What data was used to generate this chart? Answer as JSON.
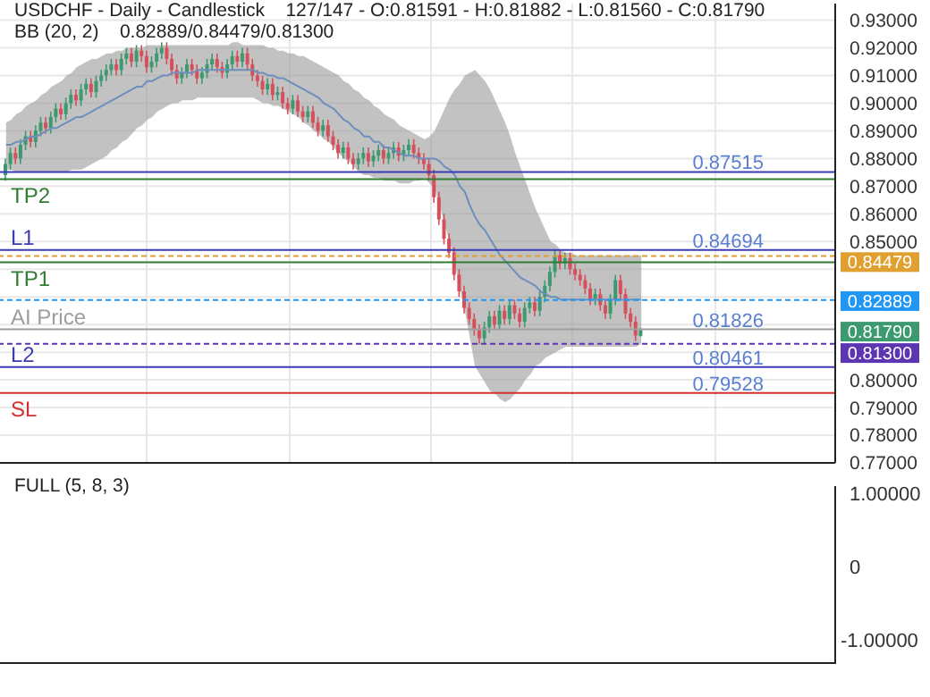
{
  "chart_data": [
    {
      "type": "candlestick",
      "title": "USDCHF - Daily - Candlestick    127/147 - O:0.81591 - H:0.81882 - L:0.81560 - C:0.81790",
      "subtitle": "BB (20, 2)    0.82889/0.84479/0.81300",
      "categories": [
        null,
        null,
        null,
        null,
        null,
        null,
        null,
        null,
        null,
        null,
        null,
        null,
        null,
        null,
        null,
        null,
        null,
        null,
        null,
        null,
        null,
        null,
        null,
        null,
        null,
        null,
        null,
        null,
        null,
        null,
        null,
        null,
        null,
        null,
        null,
        null,
        null,
        null,
        null,
        null,
        null,
        null,
        null,
        null,
        null,
        null,
        null,
        null,
        null,
        null,
        null,
        null,
        null,
        null,
        null,
        null,
        null,
        null,
        null,
        null,
        null,
        null,
        null,
        null,
        null,
        null,
        null,
        null,
        null,
        null,
        null,
        null,
        null,
        null,
        null,
        null,
        null,
        null,
        null,
        null,
        null,
        null,
        null,
        null,
        null,
        null,
        null,
        null,
        null,
        null,
        null,
        null,
        null,
        null,
        null,
        null,
        null,
        null,
        null,
        null,
        null,
        null,
        null,
        null,
        null,
        null,
        null,
        null,
        null,
        null,
        null,
        null,
        null,
        null,
        null,
        null,
        null,
        null,
        null,
        null,
        null,
        null,
        null,
        null,
        null,
        null,
        null
      ],
      "ohlc": [
        [
          0.874,
          0.88,
          0.872,
          0.878
        ],
        [
          0.878,
          0.884,
          0.876,
          0.882
        ],
        [
          0.882,
          0.884,
          0.878,
          0.88
        ],
        [
          0.88,
          0.887,
          0.878,
          0.885
        ],
        [
          0.885,
          0.89,
          0.883,
          0.888
        ],
        [
          0.888,
          0.89,
          0.884,
          0.886
        ],
        [
          0.886,
          0.892,
          0.884,
          0.89
        ],
        [
          0.89,
          0.895,
          0.888,
          0.893
        ],
        [
          0.893,
          0.895,
          0.889,
          0.891
        ],
        [
          0.891,
          0.897,
          0.889,
          0.895
        ],
        [
          0.895,
          0.9,
          0.893,
          0.898
        ],
        [
          0.898,
          0.9,
          0.894,
          0.896
        ],
        [
          0.896,
          0.902,
          0.894,
          0.9
        ],
        [
          0.9,
          0.905,
          0.898,
          0.903
        ],
        [
          0.903,
          0.905,
          0.899,
          0.901
        ],
        [
          0.901,
          0.907,
          0.899,
          0.905
        ],
        [
          0.905,
          0.909,
          0.903,
          0.907
        ],
        [
          0.907,
          0.909,
          0.902,
          0.904
        ],
        [
          0.904,
          0.91,
          0.902,
          0.908
        ],
        [
          0.908,
          0.912,
          0.906,
          0.91
        ],
        [
          0.91,
          0.914,
          0.908,
          0.912
        ],
        [
          0.912,
          0.916,
          0.91,
          0.914
        ],
        [
          0.914,
          0.916,
          0.91,
          0.912
        ],
        [
          0.912,
          0.918,
          0.91,
          0.916
        ],
        [
          0.916,
          0.92,
          0.914,
          0.918
        ],
        [
          0.918,
          0.92,
          0.913,
          0.915
        ],
        [
          0.915,
          0.921,
          0.913,
          0.919
        ],
        [
          0.919,
          0.921,
          0.915,
          0.917
        ],
        [
          0.917,
          0.919,
          0.911,
          0.913
        ],
        [
          0.913,
          0.917,
          0.911,
          0.915
        ],
        [
          0.915,
          0.92,
          0.913,
          0.918
        ],
        [
          0.918,
          0.922,
          0.916,
          0.92
        ],
        [
          0.92,
          0.922,
          0.914,
          0.916
        ],
        [
          0.916,
          0.918,
          0.91,
          0.912
        ],
        [
          0.912,
          0.914,
          0.907,
          0.909
        ],
        [
          0.909,
          0.913,
          0.907,
          0.911
        ],
        [
          0.911,
          0.916,
          0.909,
          0.914
        ],
        [
          0.914,
          0.916,
          0.91,
          0.912
        ],
        [
          0.912,
          0.914,
          0.907,
          0.909
        ],
        [
          0.909,
          0.913,
          0.907,
          0.911
        ],
        [
          0.911,
          0.916,
          0.909,
          0.914
        ],
        [
          0.914,
          0.918,
          0.912,
          0.916
        ],
        [
          0.916,
          0.918,
          0.911,
          0.913
        ],
        [
          0.913,
          0.915,
          0.909,
          0.911
        ],
        [
          0.911,
          0.916,
          0.909,
          0.914
        ],
        [
          0.914,
          0.919,
          0.912,
          0.917
        ],
        [
          0.917,
          0.919,
          0.913,
          0.915
        ],
        [
          0.915,
          0.92,
          0.913,
          0.918
        ],
        [
          0.918,
          0.92,
          0.912,
          0.914
        ],
        [
          0.914,
          0.916,
          0.908,
          0.91
        ],
        [
          0.91,
          0.912,
          0.906,
          0.908
        ],
        [
          0.908,
          0.91,
          0.903,
          0.905
        ],
        [
          0.905,
          0.909,
          0.903,
          0.907
        ],
        [
          0.907,
          0.909,
          0.901,
          0.903
        ],
        [
          0.903,
          0.906,
          0.901,
          0.904
        ],
        [
          0.904,
          0.906,
          0.898,
          0.9
        ],
        [
          0.9,
          0.902,
          0.896,
          0.898
        ],
        [
          0.898,
          0.903,
          0.896,
          0.901
        ],
        [
          0.901,
          0.903,
          0.895,
          0.897
        ],
        [
          0.897,
          0.899,
          0.893,
          0.895
        ],
        [
          0.895,
          0.899,
          0.893,
          0.897
        ],
        [
          0.897,
          0.899,
          0.891,
          0.893
        ],
        [
          0.893,
          0.895,
          0.888,
          0.89
        ],
        [
          0.89,
          0.894,
          0.888,
          0.892
        ],
        [
          0.892,
          0.894,
          0.886,
          0.888
        ],
        [
          0.888,
          0.89,
          0.883,
          0.885
        ],
        [
          0.885,
          0.887,
          0.88,
          0.882
        ],
        [
          0.882,
          0.886,
          0.88,
          0.884
        ],
        [
          0.884,
          0.886,
          0.878,
          0.88
        ],
        [
          0.88,
          0.882,
          0.876,
          0.878
        ],
        [
          0.878,
          0.882,
          0.876,
          0.88
        ],
        [
          0.88,
          0.884,
          0.878,
          0.882
        ],
        [
          0.882,
          0.884,
          0.877,
          0.879
        ],
        [
          0.879,
          0.883,
          0.877,
          0.881
        ],
        [
          0.881,
          0.885,
          0.879,
          0.883
        ],
        [
          0.883,
          0.885,
          0.878,
          0.88
        ],
        [
          0.88,
          0.884,
          0.878,
          0.882
        ],
        [
          0.882,
          0.886,
          0.88,
          0.884
        ],
        [
          0.884,
          0.886,
          0.879,
          0.881
        ],
        [
          0.881,
          0.885,
          0.879,
          0.883
        ],
        [
          0.883,
          0.887,
          0.881,
          0.885
        ],
        [
          0.885,
          0.887,
          0.88,
          0.882
        ],
        [
          0.882,
          0.884,
          0.878,
          0.88
        ],
        [
          0.88,
          0.882,
          0.876,
          0.878
        ],
        [
          0.878,
          0.88,
          0.872,
          0.874
        ],
        [
          0.874,
          0.876,
          0.864,
          0.866
        ],
        [
          0.866,
          0.868,
          0.856,
          0.858
        ],
        [
          0.858,
          0.86,
          0.849,
          0.851
        ],
        [
          0.851,
          0.853,
          0.844,
          0.846
        ],
        [
          0.846,
          0.848,
          0.836,
          0.838
        ],
        [
          0.838,
          0.84,
          0.83,
          0.832
        ],
        [
          0.832,
          0.834,
          0.824,
          0.826
        ],
        [
          0.826,
          0.828,
          0.82,
          0.822
        ],
        [
          0.822,
          0.824,
          0.816,
          0.818
        ],
        [
          0.818,
          0.82,
          0.813,
          0.815
        ],
        [
          0.815,
          0.821,
          0.813,
          0.819
        ],
        [
          0.819,
          0.825,
          0.817,
          0.823
        ],
        [
          0.823,
          0.825,
          0.818,
          0.82
        ],
        [
          0.82,
          0.827,
          0.818,
          0.825
        ],
        [
          0.825,
          0.827,
          0.82,
          0.822
        ],
        [
          0.822,
          0.829,
          0.82,
          0.827
        ],
        [
          0.827,
          0.829,
          0.822,
          0.824
        ],
        [
          0.824,
          0.826,
          0.819,
          0.821
        ],
        [
          0.821,
          0.828,
          0.819,
          0.826
        ],
        [
          0.826,
          0.83,
          0.824,
          0.828
        ],
        [
          0.828,
          0.83,
          0.823,
          0.825
        ],
        [
          0.825,
          0.832,
          0.823,
          0.83
        ],
        [
          0.83,
          0.836,
          0.828,
          0.834
        ],
        [
          0.834,
          0.841,
          0.832,
          0.839
        ],
        [
          0.839,
          0.847,
          0.837,
          0.845
        ],
        [
          0.845,
          0.847,
          0.84,
          0.842
        ],
        [
          0.842,
          0.846,
          0.84,
          0.844
        ],
        [
          0.844,
          0.846,
          0.838,
          0.84
        ],
        [
          0.84,
          0.842,
          0.836,
          0.838
        ],
        [
          0.838,
          0.84,
          0.834,
          0.836
        ],
        [
          0.836,
          0.838,
          0.831,
          0.833
        ],
        [
          0.833,
          0.835,
          0.827,
          0.829
        ],
        [
          0.829,
          0.833,
          0.827,
          0.831
        ],
        [
          0.831,
          0.833,
          0.825,
          0.827
        ],
        [
          0.827,
          0.829,
          0.822,
          0.824
        ],
        [
          0.824,
          0.831,
          0.822,
          0.829
        ],
        [
          0.829,
          0.838,
          0.827,
          0.836
        ],
        [
          0.836,
          0.838,
          0.829,
          0.831
        ],
        [
          0.831,
          0.833,
          0.822,
          0.824
        ],
        [
          0.824,
          0.826,
          0.819,
          0.821
        ],
        [
          0.821,
          0.823,
          0.814,
          0.816
        ],
        [
          0.81591,
          0.81882,
          0.8156,
          0.8179
        ]
      ],
      "series": [
        {
          "type": "line",
          "color": "#6d8fbd",
          "values": [
            0.885,
            0.885,
            0.886,
            0.886,
            0.887,
            0.888,
            0.888,
            0.889,
            0.89,
            0.891,
            0.891,
            0.892,
            0.893,
            0.894,
            0.895,
            0.895,
            0.896,
            0.897,
            0.898,
            0.899,
            0.9,
            0.901,
            0.902,
            0.903,
            0.904,
            0.905,
            0.906,
            0.906,
            0.908,
            0.908,
            0.909,
            0.91,
            0.91,
            0.911,
            0.911,
            0.911,
            0.911,
            0.911,
            0.912,
            0.912,
            0.912,
            0.912,
            0.912,
            0.912,
            0.912,
            0.912,
            0.912,
            0.912,
            0.912,
            0.912,
            0.911,
            0.911,
            0.91,
            0.91,
            0.909,
            0.909,
            0.908,
            0.907,
            0.906,
            0.905,
            0.904,
            0.903,
            0.902,
            0.9,
            0.899,
            0.898,
            0.896,
            0.894,
            0.893,
            0.891,
            0.89,
            0.888,
            0.888,
            0.886,
            0.886,
            0.884,
            0.884,
            0.883,
            0.882,
            0.881,
            0.881,
            0.881,
            0.88,
            0.88,
            0.88,
            0.88,
            0.879,
            0.877,
            0.876,
            0.874,
            0.87,
            0.868,
            0.863,
            0.859,
            0.856,
            0.854,
            0.851,
            0.848,
            0.845,
            0.843,
            0.841,
            0.839,
            0.837,
            0.836,
            0.835,
            0.834,
            0.832,
            0.831,
            0.83,
            0.83,
            0.829,
            0.829,
            0.829,
            0.829,
            0.829,
            0.829,
            0.829,
            0.829,
            0.829,
            0.829,
            0.829,
            0.829,
            0.829,
            0.829,
            0.829,
            0.829,
            0.829
          ],
          "lower": [
            0.876,
            0.876,
            0.875,
            0.875,
            0.875,
            0.875,
            0.875,
            0.875,
            0.875,
            0.875,
            0.875,
            0.875,
            0.875,
            0.876,
            0.876,
            0.876,
            0.877,
            0.878,
            0.879,
            0.88,
            0.881,
            0.883,
            0.884,
            0.886,
            0.887,
            0.889,
            0.891,
            0.892,
            0.894,
            0.895,
            0.897,
            0.898,
            0.899,
            0.9,
            0.9,
            0.901,
            0.901,
            0.901,
            0.902,
            0.902,
            0.902,
            0.902,
            0.902,
            0.902,
            0.902,
            0.902,
            0.902,
            0.902,
            0.902,
            0.902,
            0.901,
            0.9,
            0.9,
            0.899,
            0.899,
            0.898,
            0.897,
            0.896,
            0.895,
            0.893,
            0.892,
            0.89,
            0.889,
            0.887,
            0.886,
            0.884,
            0.882,
            0.88,
            0.879,
            0.877,
            0.875,
            0.874,
            0.874,
            0.873,
            0.873,
            0.872,
            0.872,
            0.872,
            0.871,
            0.871,
            0.871,
            0.872,
            0.872,
            0.873,
            0.871,
            0.869,
            0.863,
            0.856,
            0.85,
            0.842,
            0.833,
            0.825,
            0.815,
            0.805,
            0.802,
            0.799,
            0.796,
            0.795,
            0.793,
            0.792,
            0.793,
            0.795,
            0.797,
            0.8,
            0.802,
            0.805,
            0.806,
            0.808,
            0.809,
            0.81,
            0.811,
            0.812,
            0.812,
            0.812,
            0.812,
            0.812,
            0.812,
            0.812,
            0.812,
            0.812,
            0.812,
            0.812,
            0.812,
            0.812,
            0.812,
            0.812,
            0.813
          ],
          "upper": [
            0.893,
            0.894,
            0.896,
            0.897,
            0.899,
            0.9,
            0.901,
            0.903,
            0.904,
            0.906,
            0.907,
            0.908,
            0.91,
            0.911,
            0.913,
            0.914,
            0.915,
            0.916,
            0.916,
            0.917,
            0.918,
            0.918,
            0.919,
            0.919,
            0.92,
            0.92,
            0.92,
            0.92,
            0.921,
            0.921,
            0.921,
            0.921,
            0.921,
            0.921,
            0.921,
            0.921,
            0.921,
            0.921,
            0.921,
            0.921,
            0.921,
            0.921,
            0.921,
            0.921,
            0.921,
            0.922,
            0.922,
            0.921,
            0.921,
            0.921,
            0.921,
            0.921,
            0.92,
            0.92,
            0.919,
            0.919,
            0.918,
            0.918,
            0.917,
            0.917,
            0.916,
            0.915,
            0.914,
            0.913,
            0.912,
            0.911,
            0.91,
            0.908,
            0.907,
            0.905,
            0.904,
            0.902,
            0.901,
            0.899,
            0.898,
            0.896,
            0.895,
            0.894,
            0.892,
            0.891,
            0.89,
            0.889,
            0.888,
            0.887,
            0.888,
            0.89,
            0.894,
            0.898,
            0.902,
            0.905,
            0.907,
            0.91,
            0.911,
            0.912,
            0.91,
            0.908,
            0.905,
            0.901,
            0.897,
            0.893,
            0.888,
            0.882,
            0.877,
            0.872,
            0.867,
            0.862,
            0.858,
            0.854,
            0.85,
            0.849,
            0.847,
            0.846,
            0.846,
            0.845,
            0.845,
            0.845,
            0.845,
            0.845,
            0.845,
            0.845,
            0.845,
            0.845,
            0.845,
            0.845,
            0.845,
            0.845,
            0.845
          ]
        }
      ],
      "ylim": [
        0.77,
        0.936
      ],
      "yticks": [
        {
          "value": 0.77,
          "label": "0.77000"
        },
        {
          "value": 0.78,
          "label": "0.78000"
        },
        {
          "value": 0.79,
          "label": "0.79000"
        },
        {
          "value": 0.8,
          "label": "0.80000"
        },
        {
          "value": 0.81,
          "label": null
        },
        {
          "value": 0.82,
          "label": null
        },
        {
          "value": 0.83,
          "label": null
        },
        {
          "value": 0.84,
          "label": null
        },
        {
          "value": 0.85,
          "label": "0.85000"
        },
        {
          "value": 0.86,
          "label": "0.86000"
        },
        {
          "value": 0.87,
          "label": "0.87000"
        },
        {
          "value": 0.88,
          "label": "0.88000"
        },
        {
          "value": 0.89,
          "label": "0.89000"
        },
        {
          "value": 0.9,
          "label": "0.90000"
        },
        {
          "value": 0.91,
          "label": "0.91000"
        },
        {
          "value": 0.92,
          "label": "0.92000"
        },
        {
          "value": 0.93,
          "label": "0.93000"
        }
      ],
      "tick_labels": "y",
      "grid": true,
      "ref_lines": [
        {
          "axis": "y",
          "value": 0.87515,
          "color": "#3b3bb3"
        },
        {
          "axis": "y",
          "value": 0.8725,
          "label": "TP2",
          "color": "#2e7d32"
        },
        {
          "axis": "y",
          "value": 0.84694,
          "label": "L1",
          "color": "#3b3bb3"
        },
        {
          "axis": "y",
          "value": 0.84479,
          "label": "0.84479",
          "color": "#e0a030",
          "line_style": "dashed"
        },
        {
          "axis": "y",
          "value": 0.8425,
          "label": "TP1",
          "color": "#2e7d32"
        },
        {
          "axis": "y",
          "value": 0.82889,
          "label": "0.82889",
          "color": "#2196f3",
          "line_style": "dashed"
        },
        {
          "axis": "y",
          "value": 0.81826,
          "label": "AI Price",
          "color": "#9e9e9e"
        },
        {
          "axis": "y",
          "value": 0.813,
          "label": "0.81300",
          "color": "#5e35b1",
          "line_style": "dashed"
        },
        {
          "axis": "y",
          "value": 0.80461,
          "label": "L2",
          "color": "#3b3bb3"
        },
        {
          "axis": "y",
          "value": 0.79528,
          "label": "SL",
          "color": "#d32f2f"
        }
      ],
      "annotations": [
        {
          "text": "0.87515",
          "y": 0.87515
        },
        {
          "text": "0.84694",
          "y": 0.84694
        },
        {
          "text": "0.81826",
          "y": 0.81826
        },
        "0.81790",
        {
          "text": "0.80461",
          "y": 0.80461
        },
        {
          "text": "0.79528",
          "y": 0.79528
        }
      ]
    },
    {
      "type": "other",
      "title": "FULL (5, 8, 3)",
      "annotations": [
        "1.00000",
        "0",
        "-1.00000"
      ]
    }
  ]
}
